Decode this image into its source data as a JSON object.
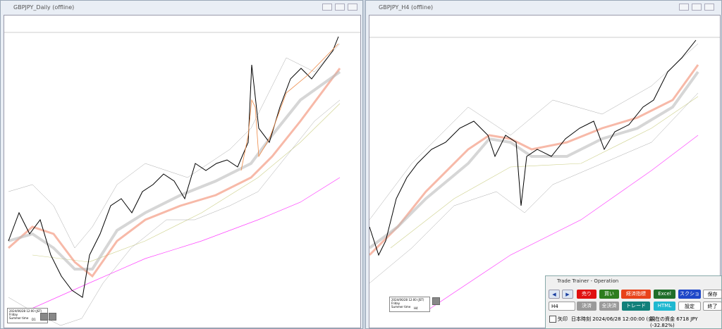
{
  "windows": [
    {
      "title": "GBPJPY_Daily (offline)",
      "info": {
        "date": "2024/06/28 12:00 (JST)",
        "day": "Friday",
        "dst": "Summer time",
        "timeframe": "D1"
      }
    },
    {
      "title": "GBPJPY_H4 (offline)",
      "info": {
        "date": "2024/06/28 12:00 (JST)",
        "day": "Friday",
        "dst": "Summer time",
        "timeframe": "H4"
      }
    }
  ],
  "panel": {
    "title": "Trade Trainer - Operation",
    "buttons_row1": [
      "◀",
      "▶",
      "売り",
      "買い",
      "経済指標",
      "Excel",
      "スクショ",
      "保存"
    ],
    "timeframe": "H4",
    "buttons_row2": [
      "決済",
      "全決済",
      "トレード",
      "HTML",
      "設定",
      "終了"
    ],
    "checkbox": "矢印",
    "time": "日本時刻 2024/06/28 12:00:00 (金)",
    "balance": "現在の資金 6718 JPY (-32.82%)"
  }
}
